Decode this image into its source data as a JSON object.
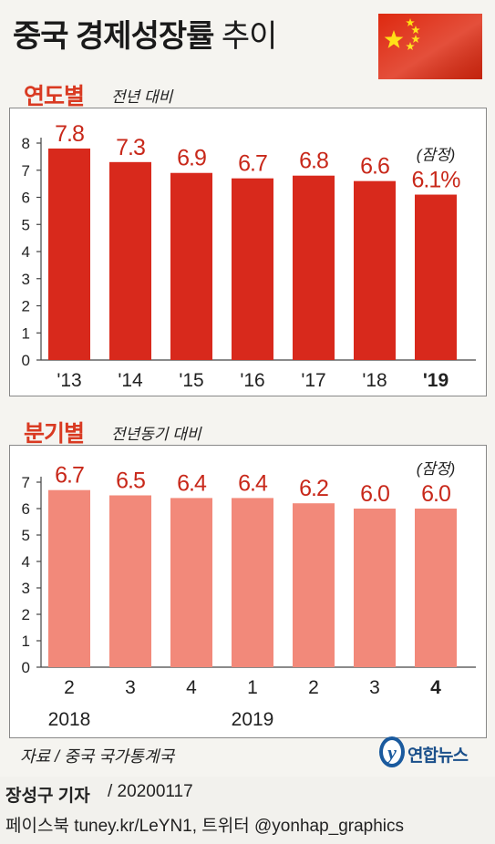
{
  "header": {
    "title_bold": "중국 경제성장률",
    "title_light": "추이"
  },
  "colors": {
    "annual_bar": "#d8291c",
    "quarterly_bar": "#f2897a",
    "annual_label": "#c8281a",
    "quarterly_label": "#c8281a",
    "flag_red": "#de2910",
    "flag_star": "#ffde00"
  },
  "annual": {
    "section_title": "연도별",
    "subtitle": "전년 대비",
    "provisional_note": "(잠정)"
  },
  "quarterly": {
    "section_title": "분기별",
    "subtitle": "전년동기 대비",
    "provisional_note": "(잠정)"
  },
  "chart_data": [
    {
      "type": "bar",
      "categories": [
        "'13",
        "'14",
        "'15",
        "'16",
        "'17",
        "'18",
        "'19"
      ],
      "values": [
        7.8,
        7.3,
        6.9,
        6.7,
        6.8,
        6.6,
        6.1
      ],
      "value_labels": [
        "7.8",
        "7.3",
        "6.9",
        "6.7",
        "6.8",
        "6.6",
        "6.1%"
      ],
      "yticks": [
        0,
        1,
        2,
        3,
        4,
        5,
        6,
        7,
        8
      ],
      "ylim": [
        0,
        8
      ],
      "grid": false
    },
    {
      "type": "bar",
      "categories": [
        "2",
        "3",
        "4",
        "1",
        "2",
        "3",
        "4"
      ],
      "year_labels": [
        "2018",
        "2019"
      ],
      "values": [
        6.7,
        6.5,
        6.4,
        6.4,
        6.2,
        6.0,
        6.0
      ],
      "value_labels": [
        "6.7",
        "6.5",
        "6.4",
        "6.4",
        "6.2",
        "6.0",
        "6.0"
      ],
      "yticks": [
        0,
        1,
        2,
        3,
        4,
        5,
        6,
        7
      ],
      "ylim": [
        0,
        7
      ],
      "grid": false
    }
  ],
  "source": "자료 / 중국 국가통계국",
  "logo": {
    "text": "연합뉴스",
    "mark": "y"
  },
  "credit": {
    "author": "장성구 기자",
    "date": "/ 20200117",
    "sns": "페이스북 tuney.kr/LeYN1, 트위터 @yonhap_graphics"
  }
}
